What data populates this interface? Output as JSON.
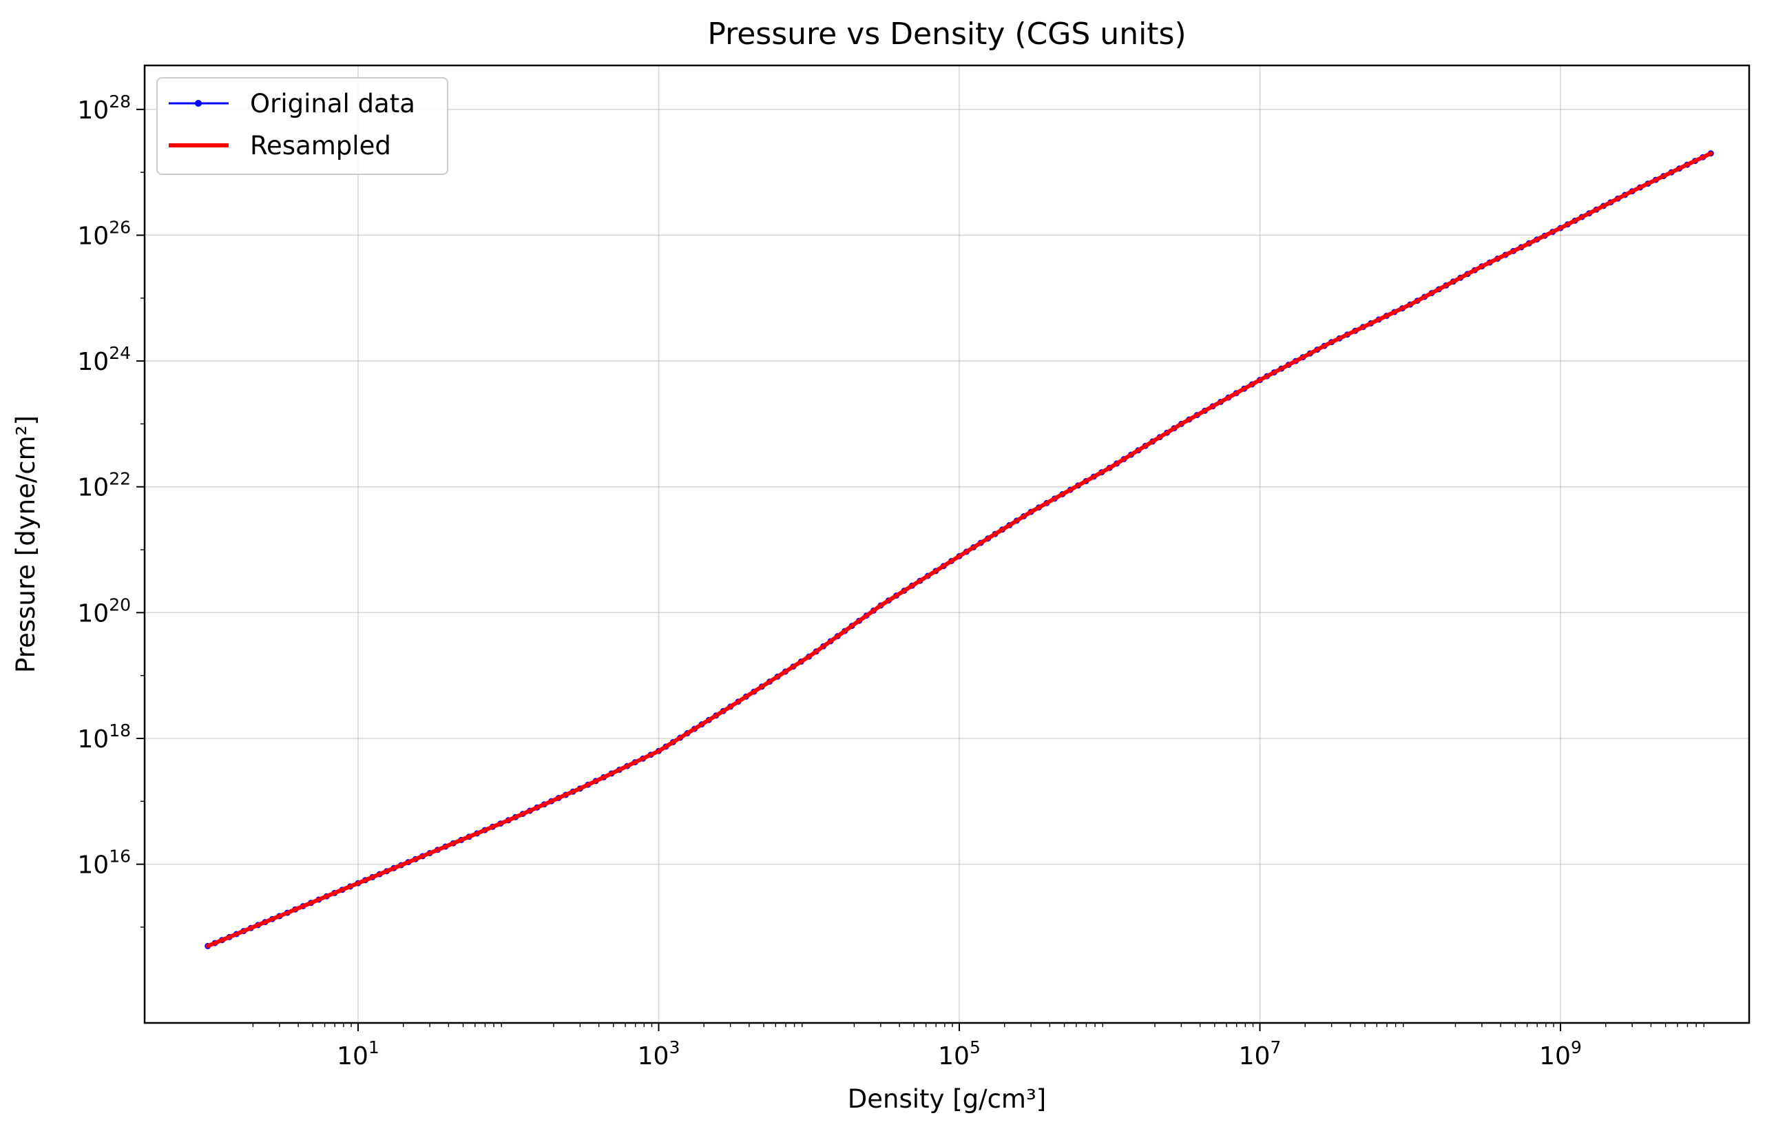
{
  "chart_data": {
    "type": "line",
    "title": "Pressure vs Density (CGS units)",
    "xlabel": "Density [g/cm³]",
    "ylabel": "Pressure [dyne/cm²]",
    "xscale": "log",
    "yscale": "log",
    "xlim": [
      0.38,
      18000000000.0
    ],
    "ylim": [
      30000000000000.0,
      5e+28
    ],
    "xticks": [
      {
        "value": 10,
        "base": "10",
        "exp": "1"
      },
      {
        "value": 1000,
        "base": "10",
        "exp": "3"
      },
      {
        "value": 100000,
        "base": "10",
        "exp": "5"
      },
      {
        "value": 10000000,
        "base": "10",
        "exp": "7"
      },
      {
        "value": 1000000000,
        "base": "10",
        "exp": "9"
      }
    ],
    "yticks": [
      {
        "value": 1e+16,
        "base": "10",
        "exp": "16"
      },
      {
        "value": 1e+18,
        "base": "10",
        "exp": "18"
      },
      {
        "value": 1e+20,
        "base": "10",
        "exp": "20"
      },
      {
        "value": 1e+22,
        "base": "10",
        "exp": "22"
      },
      {
        "value": 1e+24,
        "base": "10",
        "exp": "24"
      },
      {
        "value": 1e+26,
        "base": "10",
        "exp": "26"
      },
      {
        "value": 1e+28,
        "base": "10",
        "exp": "28"
      }
    ],
    "grid": true,
    "legend_position": "top-left",
    "series": [
      {
        "name": "Original data",
        "color": "#0000ff",
        "style": "line-with-dot-markers",
        "x": [
          1,
          3,
          10,
          30,
          100,
          300,
          1000,
          3000,
          10000,
          30000,
          100000,
          300000,
          1000000,
          3000000,
          10000000,
          30000000,
          100000000,
          300000000,
          1000000000,
          3000000000,
          10000000000
        ],
        "y": [
          500000000000000.0,
          1500000000000000.0,
          5000000000000000.0,
          1.5e+16,
          5e+16,
          1.6e+17,
          6.3e+17,
          3.2e+18,
          2e+19,
          1.3e+20,
          7.9e+20,
          4e+21,
          2e+22,
          1e+23,
          5e+23,
          2e+24,
          7.9e+24,
          3.2e+25,
          1.3e+26,
          5e+26,
          2e+27
        ]
      },
      {
        "name": "Resampled",
        "color": "#ff0000",
        "style": "thick-line",
        "x": [
          1,
          3,
          10,
          30,
          100,
          300,
          1000,
          3000,
          10000,
          30000,
          100000,
          300000,
          1000000,
          3000000,
          10000000,
          30000000,
          100000000,
          300000000,
          1000000000,
          3000000000,
          10000000000
        ],
        "y": [
          500000000000000.0,
          1500000000000000.0,
          5000000000000000.0,
          1.5e+16,
          5e+16,
          1.6e+17,
          6.3e+17,
          3.2e+18,
          2e+19,
          1.3e+20,
          7.9e+20,
          4e+21,
          2e+22,
          1e+23,
          5e+23,
          2e+24,
          7.9e+24,
          3.2e+25,
          1.3e+26,
          5e+26,
          2e+27
        ]
      }
    ]
  }
}
